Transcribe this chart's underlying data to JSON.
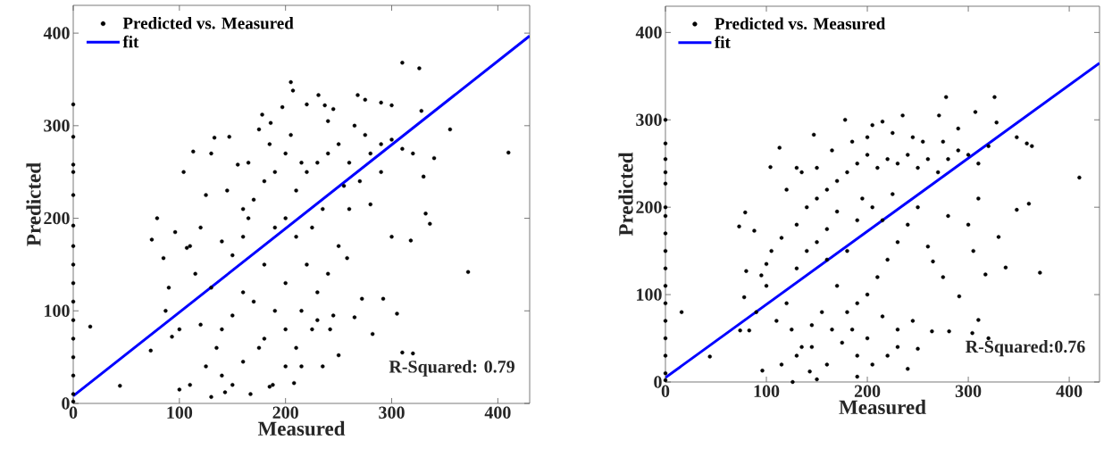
{
  "chart_data": [
    {
      "type": "scatter",
      "xlabel": "Measured",
      "ylabel": "Predicted",
      "xlim": [
        0,
        430
      ],
      "ylim": [
        0,
        430
      ],
      "xticks": [
        0,
        100,
        200,
        300,
        400
      ],
      "yticks": [
        0,
        100,
        200,
        300,
        400
      ],
      "legend": "top left",
      "annotations": [
        "R-Squared: 0.79"
      ],
      "series": [
        {
          "name": "Predicted vs. Measured",
          "color": "#000000",
          "marker": "circle",
          "x": [
            0,
            0,
            0,
            0,
            0,
            0,
            0,
            0,
            0,
            0,
            0,
            0,
            0,
            0,
            0,
            0,
            16,
            44,
            73,
            74,
            79,
            85,
            100,
            104,
            113,
            110,
            125,
            130,
            133,
            143,
            147,
            155,
            160,
            165,
            167,
            175,
            178,
            186,
            188,
            197,
            205,
            207,
            208,
            220,
            231,
            237,
            240,
            245,
            268,
            275,
            290,
            300,
            310,
            326,
            328,
            355,
            372,
            410,
            332,
            336,
            318,
            305,
            292,
            282,
            310,
            320,
            272,
            265,
            258,
            250,
            242,
            235,
            225,
            215,
            200,
            185,
            175,
            160,
            150,
            140,
            125,
            120,
            110,
            100,
            93,
            87,
            90,
            96,
            107,
            115,
            130,
            140,
            150,
            160,
            170,
            180,
            190,
            200,
            210,
            220,
            230,
            240,
            250,
            260,
            270,
            280,
            290,
            300,
            310,
            320,
            330,
            340,
            200,
            190,
            210,
            180,
            200,
            220,
            230,
            240,
            250,
            190,
            200,
            210,
            170,
            160,
            150,
            140,
            135,
            180,
            230,
            245,
            215,
            225,
            260,
            280,
            300,
            290,
            120,
            130,
            145,
            165,
            185,
            205,
            215,
            235,
            255,
            265,
            275
          ],
          "values": [
            323,
            288,
            258,
            250,
            225,
            192,
            170,
            150,
            130,
            110,
            90,
            70,
            50,
            30,
            10,
            2,
            83,
            19,
            57,
            177,
            200,
            157,
            15,
            250,
            272,
            170,
            225,
            7,
            287,
            12,
            288,
            258,
            210,
            200,
            10,
            296,
            312,
            303,
            20,
            320,
            347,
            338,
            22,
            323,
            333,
            322,
            305,
            318,
            333,
            328,
            325,
            322,
            368,
            362,
            316,
            296,
            142,
            271,
            205,
            194,
            176,
            97,
            113,
            75,
            55,
            54,
            113,
            93,
            157,
            52,
            80,
            40,
            80,
            40,
            40,
            18,
            60,
            45,
            20,
            30,
            40,
            85,
            20,
            80,
            72,
            100,
            125,
            185,
            168,
            140,
            125,
            175,
            160,
            180,
            220,
            240,
            250,
            270,
            230,
            250,
            260,
            270,
            280,
            260,
            240,
            270,
            280,
            285,
            275,
            270,
            245,
            265,
            200,
            190,
            180,
            150,
            130,
            150,
            120,
            140,
            170,
            100,
            80,
            60,
            110,
            120,
            95,
            80,
            60,
            70,
            90,
            95,
            100,
            190,
            210,
            215,
            180,
            250,
            190,
            270,
            230,
            260,
            280,
            290,
            260,
            210,
            235,
            300,
            290
          ]
        },
        {
          "name": "fit",
          "type": "line",
          "color": "#0000ff",
          "line_style": "solid",
          "x": [
            0,
            430
          ],
          "values": [
            8,
            397
          ]
        }
      ]
    },
    {
      "type": "scatter",
      "xlabel": "Measured",
      "ylabel": "Predicted",
      "xlim": [
        0,
        430
      ],
      "ylim": [
        0,
        430
      ],
      "xticks": [
        0,
        100,
        200,
        300,
        400
      ],
      "yticks": [
        0,
        100,
        200,
        300,
        400
      ],
      "legend": "top left",
      "annotations": [
        "R-Squared:0.76"
      ],
      "series": [
        {
          "name": "Predicted vs. Measured",
          "color": "#000000",
          "marker": "circle",
          "x": [
            0,
            0,
            0,
            0,
            0,
            0,
            0,
            0,
            0,
            0,
            0,
            0,
            0,
            0,
            0,
            0,
            0,
            16,
            44,
            74,
            73,
            80,
            79,
            83,
            88,
            96,
            100,
            104,
            113,
            126,
            130,
            143,
            147,
            150,
            178,
            190,
            205,
            215,
            235,
            278,
            271,
            307,
            326,
            328,
            348,
            358,
            363,
            410,
            348,
            360,
            371,
            337,
            330,
            317,
            310,
            304,
            320,
            291,
            281,
            264,
            250,
            240,
            230,
            220,
            205,
            190,
            175,
            160,
            145,
            130,
            115,
            110,
            120,
            100,
            90,
            78,
            95,
            105,
            115,
            130,
            140,
            150,
            160,
            170,
            180,
            190,
            200,
            210,
            220,
            230,
            240,
            250,
            260,
            270,
            280,
            290,
            300,
            310,
            320,
            250,
            240,
            230,
            220,
            210,
            200,
            190,
            180,
            170,
            160,
            150,
            140,
            130,
            205,
            195,
            215,
            225,
            260,
            265,
            275,
            280,
            300,
            305,
            310,
            185,
            200,
            215,
            230,
            245,
            165,
            155,
            145,
            135,
            125,
            180,
            190,
            170,
            160,
            120,
            135,
            150,
            165,
            185,
            200,
            225,
            245,
            255,
            275,
            290
          ],
          "values": [
            300,
            273,
            255,
            240,
            227,
            200,
            190,
            170,
            150,
            130,
            110,
            90,
            70,
            50,
            30,
            10,
            2,
            80,
            29,
            59,
            178,
            127,
            194,
            59,
            173,
            13,
            135,
            246,
            268,
            0,
            245,
            12,
            283,
            3,
            300,
            6,
            294,
            298,
            305,
            326,
            305,
            309,
            326,
            297,
            280,
            273,
            270,
            234,
            197,
            204,
            125,
            131,
            166,
            123,
            71,
            56,
            50,
            98,
            58,
            58,
            38,
            15,
            40,
            30,
            20,
            30,
            45,
            20,
            40,
            30,
            20,
            70,
            90,
            110,
            80,
            97,
            122,
            150,
            165,
            180,
            200,
            210,
            220,
            230,
            240,
            250,
            260,
            245,
            255,
            250,
            260,
            245,
            255,
            240,
            255,
            265,
            260,
            250,
            270,
            200,
            180,
            160,
            140,
            120,
            100,
            90,
            80,
            110,
            140,
            160,
            150,
            130,
            200,
            210,
            185,
            215,
            155,
            138,
            120,
            190,
            180,
            150,
            210,
            60,
            50,
            75,
            60,
            70,
            60,
            80,
            65,
            40,
            60,
            150,
            185,
            195,
            175,
            220,
            240,
            245,
            265,
            275,
            280,
            285,
            280,
            275,
            275,
            290
          ]
        },
        {
          "name": "fit",
          "type": "line",
          "color": "#0000ff",
          "line_style": "solid",
          "x": [
            0,
            430
          ],
          "values": [
            5,
            365
          ]
        }
      ]
    }
  ]
}
